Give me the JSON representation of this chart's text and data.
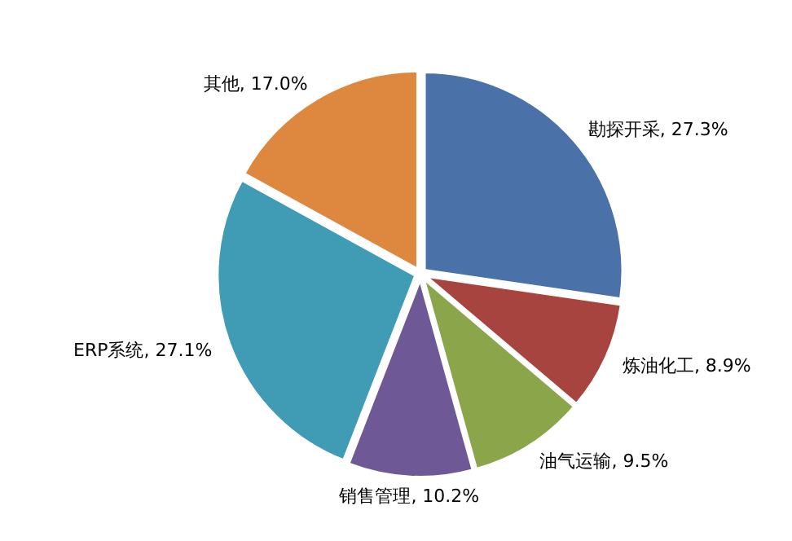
{
  "chart_data": {
    "type": "pie",
    "categories": [
      "勘探开采",
      "炼油化工",
      "油气运输",
      "销售管理",
      "ERP系统",
      "其他"
    ],
    "values": [
      27.3,
      8.9,
      9.5,
      10.2,
      27.1,
      17.0
    ],
    "value_labels": [
      ", 27.3%",
      ", 8.9%",
      ", 9.5%",
      ", 10.2%",
      ", 27.1%",
      ", 17.0%"
    ],
    "colors": [
      "#4a72a8",
      "#a8443f",
      "#8aa54a",
      "#6e5895",
      "#3f9cb4",
      "#dd873f"
    ]
  }
}
